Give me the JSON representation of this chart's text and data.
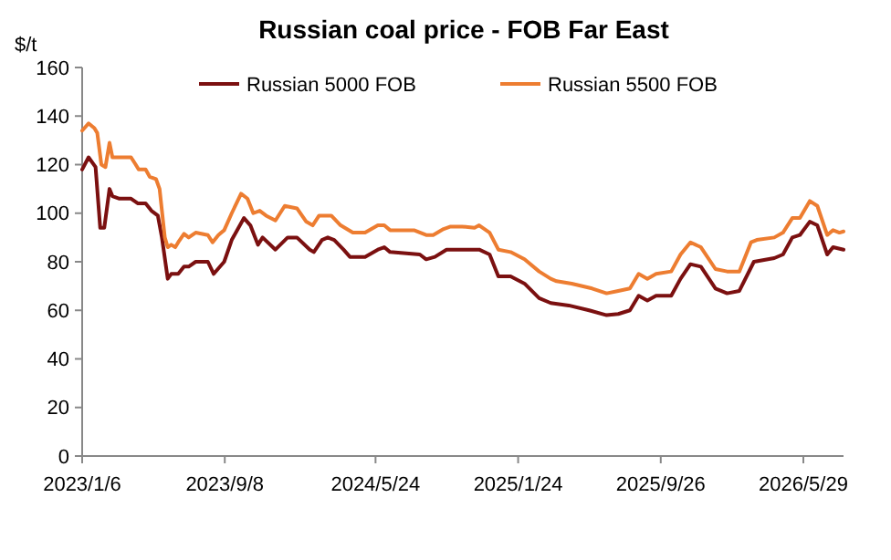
{
  "chart_data": {
    "type": "line",
    "title": "Russian coal price - FOB Far East",
    "ylabel": "$/t",
    "legend": "top",
    "grid": false,
    "line_style": "solid",
    "xlim": [
      "2023-01-06",
      "2026-08-06"
    ],
    "xticks": [
      {
        "value": "2023-01-06",
        "label": "2023/1/6"
      },
      {
        "value": "2023-09-08",
        "label": "2023/9/8"
      },
      {
        "value": "2024-05-24",
        "label": "2024/5/24"
      },
      {
        "value": "2025-01-24",
        "label": "2025/1/24"
      },
      {
        "value": "2025-09-26",
        "label": "2025/9/26"
      },
      {
        "value": "2026-05-29",
        "label": "2026/5/29"
      }
    ],
    "ylim": [
      0,
      160
    ],
    "yticks": [
      0,
      20,
      40,
      60,
      80,
      100,
      120,
      140,
      160
    ],
    "series": [
      {
        "name": "Russian 5000 FOB",
        "color": "#7b1010",
        "x": [
          "2023-01-06",
          "2023-01-17",
          "2023-01-29",
          "2023-02-06",
          "2023-02-13",
          "2023-02-22",
          "2023-02-27",
          "2023-03-11",
          "2023-03-31",
          "2023-04-12",
          "2023-04-25",
          "2023-05-05",
          "2023-05-16",
          "2023-05-23",
          "2023-06-02",
          "2023-06-08",
          "2023-06-20",
          "2023-06-30",
          "2023-07-08",
          "2023-07-20",
          "2023-08-10",
          "2023-08-20",
          "2023-09-07",
          "2023-09-20",
          "2023-10-11",
          "2023-10-22",
          "2023-11-04",
          "2023-11-12",
          "2023-12-04",
          "2023-12-25",
          "2024-01-10",
          "2024-02-01",
          "2024-02-08",
          "2024-02-22",
          "2024-03-03",
          "2024-03-14",
          "2024-03-30",
          "2024-04-10",
          "2024-05-06",
          "2024-05-28",
          "2024-06-08",
          "2024-06-18",
          "2024-08-08",
          "2024-08-19",
          "2024-09-03",
          "2024-09-23",
          "2024-10-31",
          "2024-11-18",
          "2024-12-06",
          "2024-12-21",
          "2025-01-11",
          "2025-02-04",
          "2025-03-01",
          "2025-03-21",
          "2025-04-21",
          "2025-05-26",
          "2025-06-25",
          "2025-07-15",
          "2025-08-04",
          "2025-08-19",
          "2025-09-03",
          "2025-09-18",
          "2025-10-14",
          "2025-10-30",
          "2025-11-16",
          "2025-12-04",
          "2025-12-29",
          "2026-01-18",
          "2026-02-08",
          "2026-03-05",
          "2026-04-09",
          "2026-04-24",
          "2026-05-10",
          "2026-05-23",
          "2026-06-09",
          "2026-06-22",
          "2026-07-09",
          "2026-07-19",
          "2026-08-06"
        ],
        "values": [
          118,
          123,
          119,
          94,
          94,
          110,
          107,
          106,
          106,
          104,
          104,
          101,
          99,
          90,
          73,
          75,
          75,
          78,
          78,
          80,
          80,
          75,
          80,
          89,
          98,
          95,
          87,
          90,
          85,
          90,
          90,
          85,
          84,
          89,
          90,
          89,
          85,
          82,
          82,
          85,
          86,
          84,
          83,
          81,
          82,
          85,
          85,
          85,
          83,
          74,
          74,
          71,
          65,
          63,
          62,
          60,
          58,
          58.5,
          60,
          66,
          64,
          66,
          66,
          73,
          79,
          78,
          69,
          67,
          68,
          80,
          81.5,
          83,
          90,
          91,
          96.5,
          95,
          83,
          86,
          85
        ]
      },
      {
        "name": "Russian 5500 FOB",
        "color": "#ed7d31",
        "x": [
          "2023-01-06",
          "2023-01-17",
          "2023-01-27",
          "2023-02-01",
          "2023-02-08",
          "2023-02-15",
          "2023-02-22",
          "2023-02-27",
          "2023-03-06",
          "2023-03-31",
          "2023-04-08",
          "2023-04-13",
          "2023-04-25",
          "2023-05-02",
          "2023-05-13",
          "2023-05-19",
          "2023-05-28",
          "2023-06-02",
          "2023-06-08",
          "2023-06-15",
          "2023-06-20",
          "2023-06-30",
          "2023-07-08",
          "2023-07-20",
          "2023-08-10",
          "2023-08-18",
          "2023-08-28",
          "2023-09-07",
          "2023-09-20",
          "2023-10-06",
          "2023-10-17",
          "2023-10-27",
          "2023-11-07",
          "2023-11-18",
          "2023-12-04",
          "2023-12-20",
          "2024-01-10",
          "2024-01-26",
          "2024-02-06",
          "2024-02-17",
          "2024-03-09",
          "2024-03-25",
          "2024-04-15",
          "2024-05-06",
          "2024-05-28",
          "2024-06-08",
          "2024-06-18",
          "2024-07-29",
          "2024-08-19",
          "2024-08-31",
          "2024-09-18",
          "2024-09-30",
          "2024-10-20",
          "2024-11-10",
          "2024-11-18",
          "2024-12-06",
          "2024-12-21",
          "2025-01-11",
          "2025-02-04",
          "2025-03-01",
          "2025-03-21",
          "2025-03-31",
          "2025-04-26",
          "2025-05-31",
          "2025-06-25",
          "2025-07-15",
          "2025-08-04",
          "2025-08-19",
          "2025-09-03",
          "2025-09-18",
          "2025-10-14",
          "2025-10-30",
          "2025-11-16",
          "2025-12-04",
          "2025-12-29",
          "2026-01-18",
          "2026-02-08",
          "2026-02-28",
          "2026-03-10",
          "2026-04-09",
          "2026-04-24",
          "2026-05-10",
          "2026-05-23",
          "2026-06-09",
          "2026-06-22",
          "2026-07-09",
          "2026-07-19",
          "2026-07-30",
          "2026-08-06"
        ],
        "values": [
          134,
          137,
          135,
          133,
          120,
          119,
          129,
          123,
          123,
          123,
          120,
          118,
          118,
          115,
          114,
          110,
          90,
          86,
          87,
          86,
          88,
          91.5,
          90,
          92,
          91,
          88,
          91,
          93,
          100,
          108,
          106,
          100,
          101,
          99,
          97,
          103,
          102,
          96.5,
          95,
          99,
          99,
          95,
          92,
          92,
          95,
          95,
          93,
          93,
          91,
          91,
          93.5,
          94.5,
          94.5,
          94,
          95,
          92,
          85,
          84,
          81,
          76,
          73,
          72,
          71,
          69,
          67,
          68,
          69,
          75,
          73,
          75,
          76,
          83,
          88,
          86,
          77,
          76,
          76,
          88,
          89,
          90,
          92,
          98,
          98,
          105,
          103,
          91,
          93,
          92,
          92.5
        ]
      }
    ]
  }
}
